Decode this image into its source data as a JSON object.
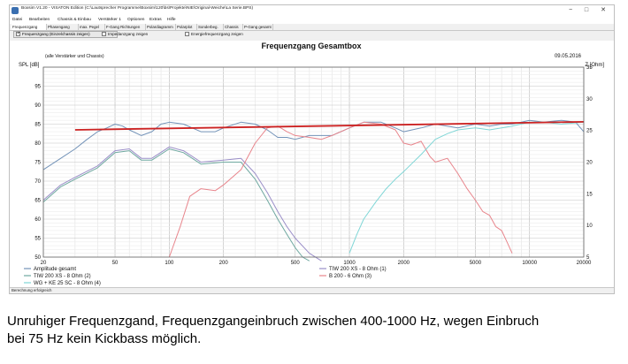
{
  "window": {
    "title": "Boxsim V1.20 - VISATON Edition (C:\\Lautsprecher Programme\\Boxsim\\120\\bs\\Projekte\\NIE\\Original-Weiche\\La Serie.BPS)",
    "controls": {
      "minimize": "−",
      "maximize": "□",
      "close": "✕"
    }
  },
  "menubar": [
    "Datei",
    "Bearbeiten",
    "Chassis & Einbau",
    "Verstärker 1",
    "Optionen",
    "Extras",
    "Hilfe"
  ],
  "tabs": [
    "Frequenzgang",
    "Phasengang",
    "max. Pegel",
    "F-Gang Richtungen",
    "Polardiagramm",
    "Polarplot",
    "Sonderbeg.",
    "Chassis",
    "P-Gang gesamt"
  ],
  "options": {
    "opt1": "Frequenzgang (Einzelchassis zeigen)",
    "opt2": "Impedanzgang zeigen",
    "opt3": "Energiefrequenzgang zeigen"
  },
  "status": "Berechnung erfolgreich",
  "caption": {
    "line1": "Unruhiger Frequenzgand, Frequenzgangeinbruch zwischen 400-1000 Hz, wegen Einbruch",
    "line2": "bei 75 Hz kein Kickbass möglich."
  },
  "chart_data": {
    "type": "line",
    "title": "Frequenzgang Gesamtbox",
    "subtitle": "(alle Verstärker und Chassis)",
    "date": "09.05.2016",
    "ylabel": "SPL [dB]",
    "y2label": "Z [Ohm]",
    "xscale": "log",
    "xlim": [
      20,
      20000
    ],
    "ylim": [
      50,
      100
    ],
    "y2lim": [
      5,
      35
    ],
    "xticks": [
      20,
      50,
      100,
      200,
      500,
      1000,
      2000,
      5000,
      10000,
      20000
    ],
    "xtick_labels": [
      "20",
      "50",
      "100",
      "200",
      "500",
      "1000",
      "2000",
      "5000",
      "10000",
      "20000"
    ],
    "yticks": [
      50,
      55,
      60,
      65,
      70,
      75,
      80,
      85,
      90,
      95
    ],
    "y2ticks": [
      5,
      10,
      15,
      20,
      25,
      30,
      35
    ],
    "grid": true,
    "legend": "bottom",
    "series": [
      {
        "name": "Amplitude gesamt",
        "color": "#7393b8",
        "axis": "left",
        "x": [
          20,
          25,
          30,
          35,
          40,
          45,
          50,
          55,
          60,
          70,
          80,
          90,
          100,
          120,
          150,
          180,
          200,
          250,
          300,
          350,
          400,
          450,
          500,
          600,
          700,
          800,
          1000,
          1200,
          1500,
          1800,
          2000,
          2500,
          3000,
          4000,
          5000,
          6000,
          7000,
          8000,
          10000,
          12000,
          15000,
          18000,
          20000
        ],
        "y": [
          73,
          76,
          78.5,
          81,
          83,
          84,
          85,
          84.5,
          83.5,
          82,
          83,
          85,
          85.5,
          85,
          83,
          83,
          84,
          85.5,
          85,
          83.5,
          81.5,
          81.5,
          81,
          82,
          82,
          82,
          84,
          85.5,
          85.5,
          84,
          83,
          84,
          85,
          84,
          85,
          84.5,
          85,
          85,
          86,
          85.5,
          86,
          85.5,
          83
        ]
      },
      {
        "name": "TIW 200 XS - 8 Ohm (1)",
        "color": "#9a8ec8",
        "axis": "left",
        "x": [
          20,
          25,
          30,
          40,
          50,
          60,
          70,
          80,
          100,
          120,
          150,
          200,
          250,
          300,
          350,
          400,
          450,
          500,
          600,
          700
        ],
        "y": [
          65,
          69,
          71,
          74,
          78,
          78.5,
          76,
          76,
          79,
          78,
          75,
          75.5,
          76,
          72,
          67,
          62,
          58,
          55,
          51,
          49
        ]
      },
      {
        "name": "TIW 200 XS - 8 Ohm (2)",
        "color": "#6fa8a0",
        "axis": "left",
        "x": [
          20,
          25,
          30,
          40,
          50,
          60,
          70,
          80,
          100,
          120,
          150,
          200,
          250,
          300,
          350,
          400,
          450,
          500,
          550,
          600
        ],
        "y": [
          64.5,
          68.5,
          70.5,
          73.5,
          77.5,
          78,
          75.5,
          75.5,
          78.5,
          77.5,
          74.5,
          75,
          75,
          70.5,
          65,
          60,
          56,
          52.5,
          50,
          49
        ]
      },
      {
        "name": "B 200 - 6 Ohm (3)",
        "color": "#e8858c",
        "axis": "left",
        "x": [
          100,
          115,
          130,
          150,
          180,
          200,
          250,
          300,
          350,
          400,
          450,
          500,
          600,
          700,
          800,
          1000,
          1200,
          1500,
          1800,
          2000,
          2200,
          2500,
          2800,
          3000,
          3500,
          4000,
          4500,
          5000,
          5500,
          6000,
          6500,
          7000,
          7500,
          8000
        ],
        "y": [
          50,
          58,
          66,
          68,
          67.5,
          69,
          73,
          80,
          84,
          84.5,
          83,
          82,
          81.5,
          81,
          82,
          84,
          85.5,
          85,
          83.5,
          80,
          79.5,
          80.5,
          76.5,
          75,
          76,
          72,
          68,
          65,
          62,
          61,
          58,
          57,
          54,
          51
        ]
      },
      {
        "name": "WG + KE 25 SC - 8 Ohm (4)",
        "color": "#7fd6d6",
        "axis": "left",
        "x": [
          1000,
          1100,
          1200,
          1400,
          1600,
          1800,
          2000,
          2500,
          3000,
          3500,
          4000,
          5000,
          6000,
          7000,
          8000,
          10000,
          12000,
          15000,
          20000
        ],
        "y": [
          51,
          56,
          60,
          64.5,
          68,
          70.5,
          72.5,
          77,
          81,
          82.5,
          83.5,
          84,
          83.5,
          84,
          84.5,
          85.5,
          85.5,
          85,
          85.5
        ]
      },
      {
        "name": "",
        "color": "#cc2222",
        "axis": "left",
        "x": [
          30,
          20000
        ],
        "y": [
          83.5,
          85.6
        ]
      }
    ]
  }
}
